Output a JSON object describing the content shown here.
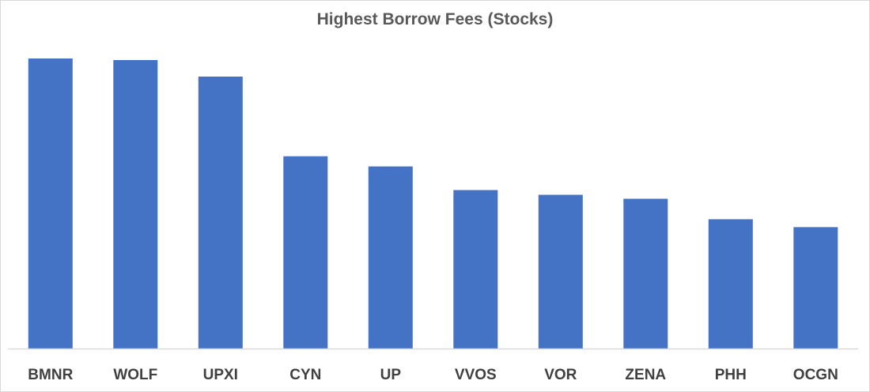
{
  "chart_data": {
    "type": "bar",
    "title": "Highest Borrow Fees (Stocks)",
    "xlabel": "",
    "ylabel": "",
    "categories": [
      "BMNR",
      "WOLF",
      "UPXI",
      "CYN",
      "UP",
      "VVOS",
      "VOR",
      "ZENA",
      "PHH",
      "OCGN"
    ],
    "values": [
      368,
      366,
      345,
      244,
      231,
      201,
      195,
      190,
      164,
      154
    ],
    "ylim": [
      0,
      400
    ],
    "grid": false,
    "legend": "none",
    "bar_color": "#4472C4",
    "axis_color": "#d9d9d9"
  }
}
